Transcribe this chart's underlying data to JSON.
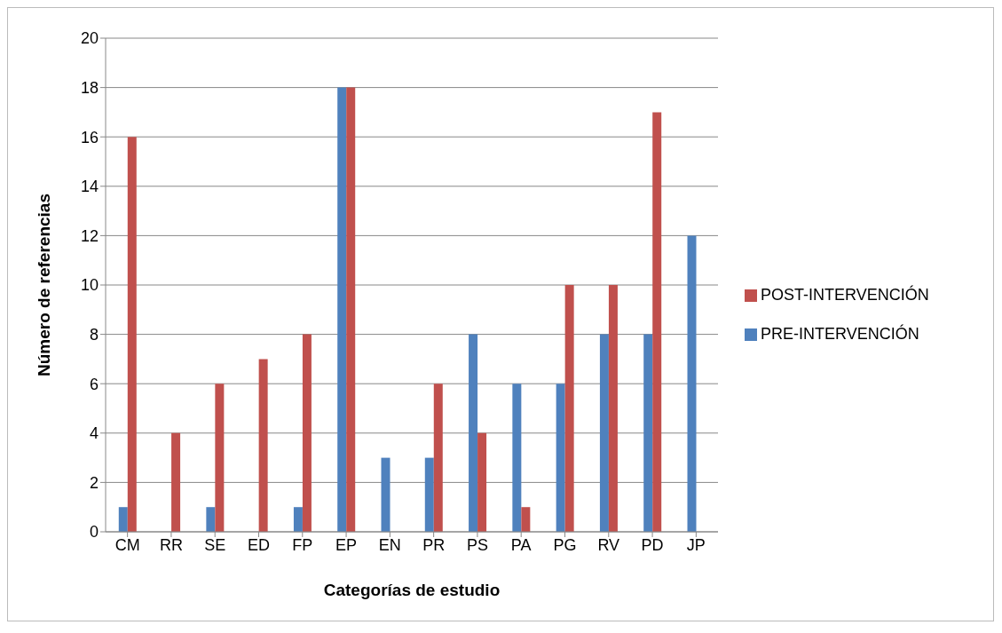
{
  "chart_data": {
    "type": "bar",
    "xlabel": "Categorías de estudio",
    "ylabel": "Número de referencias",
    "categories": [
      "CM",
      "RR",
      "SE",
      "ED",
      "FP",
      "EP",
      "EN",
      "PR",
      "PS",
      "PA",
      "PG",
      "RV",
      "PD",
      "JP"
    ],
    "series": [
      {
        "name": "PRE-INTERVENCIÓN",
        "color": "#4f81bd",
        "values": [
          1,
          0,
          1,
          0,
          1,
          18,
          3,
          3,
          8,
          6,
          6,
          8,
          8,
          12
        ]
      },
      {
        "name": "POST-INTERVENCIÓN",
        "color": "#c0504d",
        "values": [
          16,
          4,
          6,
          7,
          8,
          18,
          0,
          6,
          4,
          1,
          10,
          10,
          17,
          0
        ]
      }
    ],
    "ylim": [
      0,
      20
    ],
    "yticks": [
      0,
      2,
      4,
      6,
      8,
      10,
      12,
      14,
      16,
      18,
      20
    ],
    "grid": "y",
    "legend": "right"
  }
}
